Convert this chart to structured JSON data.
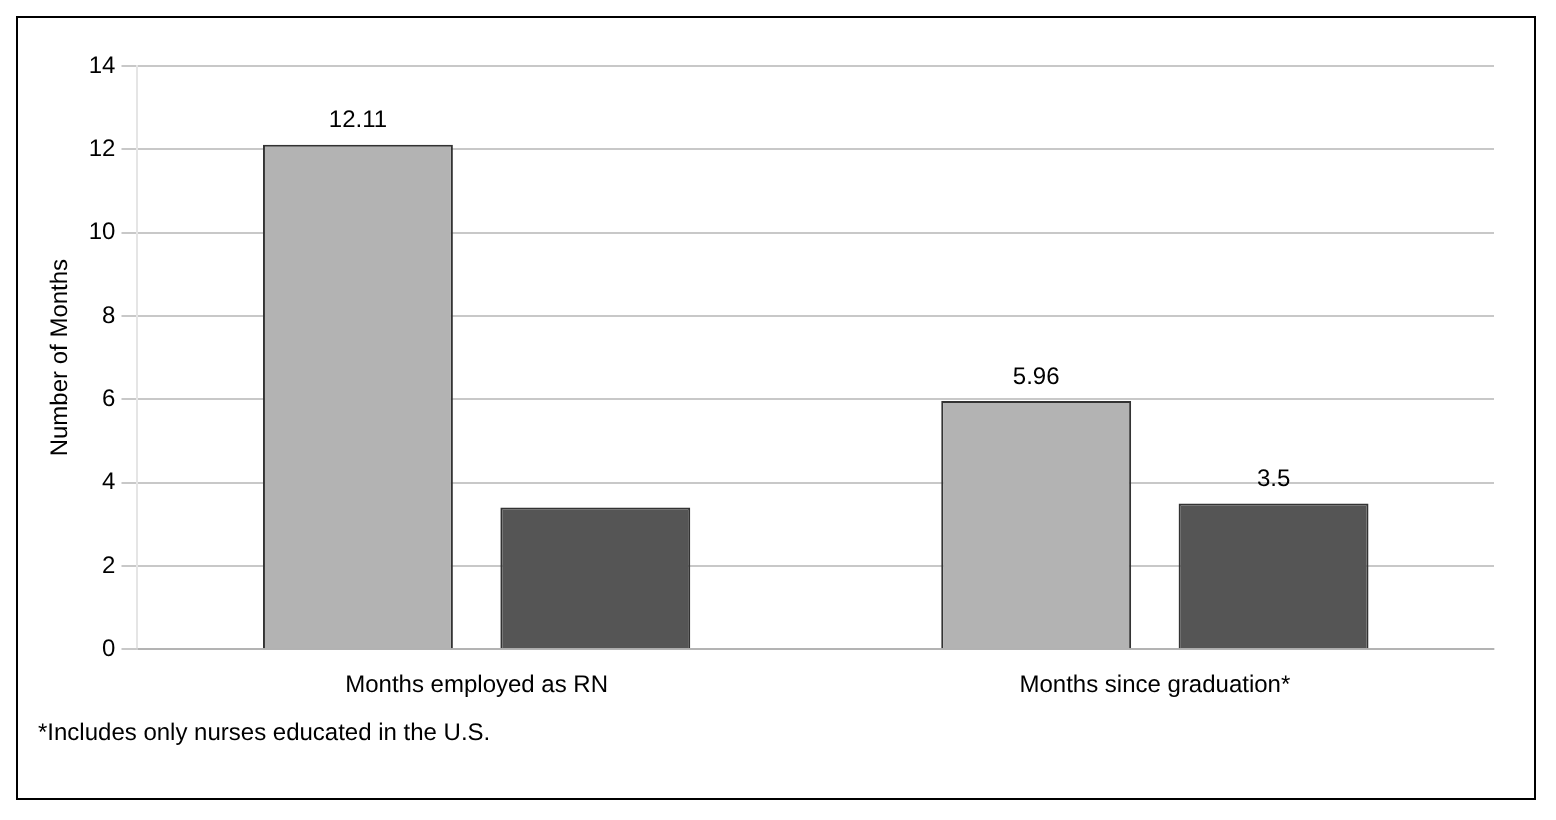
{
  "chart_data": {
    "type": "bar",
    "categories": [
      "Months employed as RN",
      "Months since graduation*"
    ],
    "series": [
      {
        "color": "#b3b3b3",
        "values": [
          12.11,
          5.96
        ],
        "value_labels": [
          "12.11",
          "5.96"
        ]
      },
      {
        "color": "#555555",
        "values": [
          3.4,
          3.5
        ],
        "value_labels": [
          null,
          "3.5"
        ]
      }
    ],
    "ylabel": "Number of Months",
    "ylim": [
      0,
      14
    ],
    "yticks": [
      0,
      2,
      4,
      6,
      8,
      10,
      12,
      14
    ],
    "grid": "y",
    "annotations": [
      "*Includes only nurses educated in the U.S."
    ]
  }
}
